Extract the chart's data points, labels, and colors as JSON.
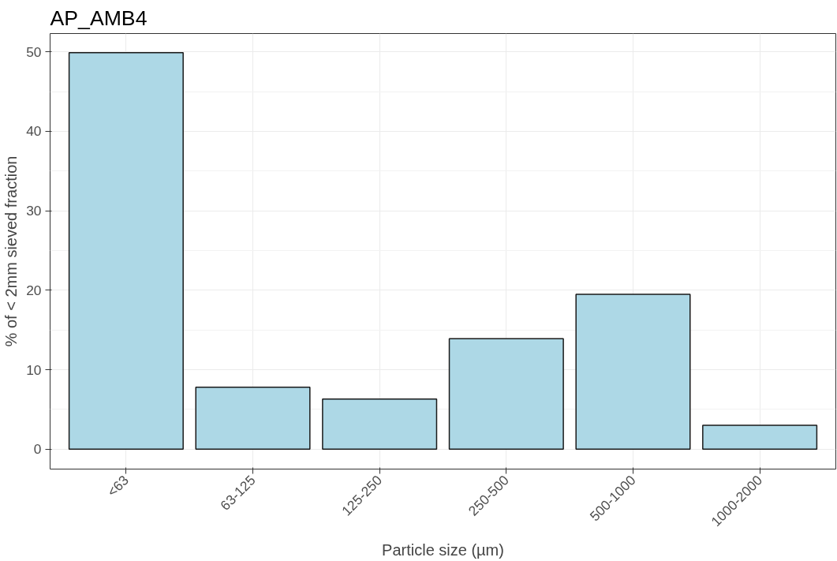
{
  "chart_data": {
    "type": "bar",
    "title": "AP_AMB4",
    "xlabel": "Particle size (µm)",
    "ylabel": "% of < 2mm sieved fraction",
    "categories": [
      "<63",
      "63-125",
      "125-250",
      "250-500",
      "500-1000",
      "1000-2000"
    ],
    "values": [
      49.9,
      7.8,
      6.3,
      13.9,
      19.5,
      3.0
    ],
    "color": "#add8e6",
    "ylim": [
      -2.5,
      52.3
    ],
    "yticks": [
      0,
      10,
      20,
      30,
      40,
      50
    ],
    "grid": true
  }
}
